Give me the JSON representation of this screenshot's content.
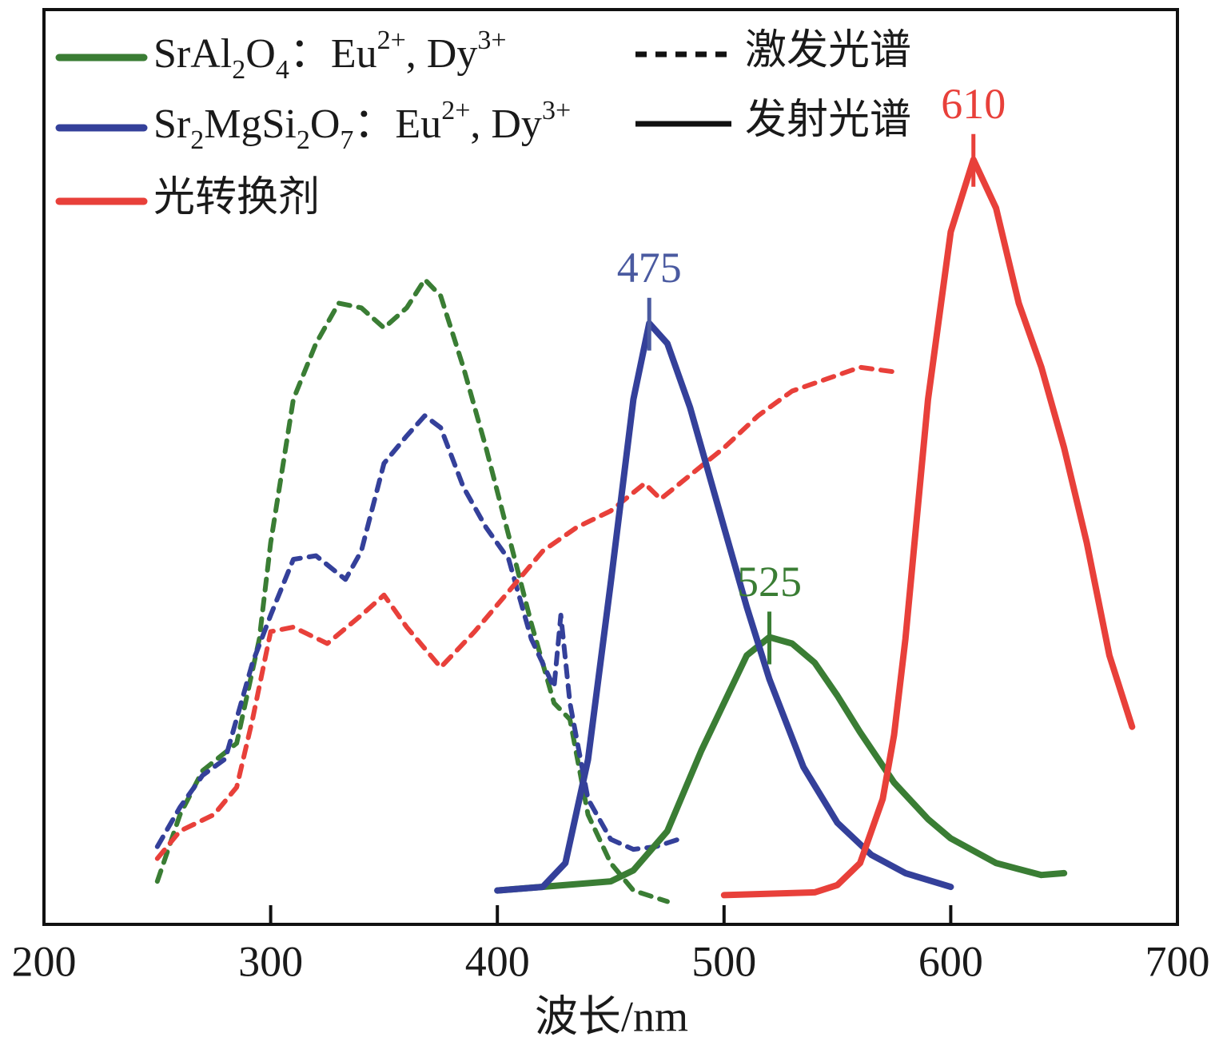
{
  "chart_data": {
    "type": "line",
    "xlabel": "波长/nm",
    "xlim": [
      200,
      700
    ],
    "xticks": [
      200,
      300,
      400,
      500,
      600,
      700
    ],
    "ylim": [
      0,
      100
    ],
    "legend": {
      "materials": [
        {
          "name": "SrAl2O4：Eu2+, Dy3+",
          "color": "#3a7d34"
        },
        {
          "name": "Sr2MgSi2O7：Eu2+, Dy3+",
          "color": "#34409a"
        },
        {
          "name": "光转换剂",
          "color": "#e8403a"
        }
      ],
      "styles": [
        {
          "name": "激发光谱",
          "style": "dashed"
        },
        {
          "name": "发射光谱",
          "style": "solid"
        }
      ]
    },
    "series": [
      {
        "color": "#3a7d34",
        "style": "dashed",
        "x": [
          250,
          260,
          270,
          285,
          295,
          300,
          310,
          320,
          330,
          340,
          350,
          360,
          368,
          375,
          385,
          395,
          405,
          415,
          425,
          432,
          440,
          450,
          460,
          475
        ],
        "values": [
          4.7,
          12,
          16.8,
          19.8,
          31.2,
          41.7,
          57.4,
          63.5,
          67.9,
          67.4,
          65.2,
          67.4,
          70.5,
          68.7,
          60.9,
          52.1,
          42.5,
          32.9,
          24.2,
          22.4,
          12,
          6.7,
          3.7,
          2.5
        ]
      },
      {
        "color": "#34409a",
        "style": "dashed",
        "x": [
          250,
          260,
          270,
          280,
          292,
          300,
          310,
          320,
          333,
          340,
          350,
          360,
          368,
          375,
          385,
          395,
          405,
          415,
          425,
          428,
          432,
          440,
          450,
          460,
          470,
          480
        ],
        "values": [
          8.5,
          12.8,
          16.3,
          18.1,
          28.6,
          33.8,
          39.9,
          40.3,
          37.7,
          40.8,
          50.4,
          53.4,
          55.6,
          54.3,
          47.8,
          43.4,
          39.9,
          31.2,
          25.9,
          33.8,
          24.2,
          13.7,
          9.3,
          8.2,
          8.5,
          9.3
        ]
      },
      {
        "color": "#e8403a",
        "style": "dashed",
        "x": [
          250,
          260,
          275,
          285,
          292,
          300,
          310,
          325,
          340,
          350,
          360,
          375,
          390,
          405,
          420,
          435,
          450,
          465,
          472,
          485,
          500,
          515,
          530,
          545,
          560,
          575
        ],
        "values": [
          7.2,
          10.2,
          12,
          15,
          22.4,
          32,
          32.5,
          30.7,
          33.8,
          36,
          32.5,
          28.1,
          32,
          36.4,
          40.8,
          43.4,
          45.2,
          48.2,
          46.5,
          49.1,
          52.1,
          55.6,
          58.3,
          59.6,
          60.9,
          60.4
        ]
      },
      {
        "color": "#3a7d34",
        "style": "solid",
        "x": [
          400,
          450,
          460,
          475,
          490,
          500,
          510,
          520,
          530,
          540,
          550,
          560,
          575,
          590,
          600,
          620,
          640,
          650
        ],
        "values": [
          3.7,
          4.7,
          5.9,
          10.2,
          19,
          24.2,
          29.4,
          31.4,
          30.7,
          28.6,
          25,
          21,
          15.5,
          11.5,
          9.4,
          6.7,
          5.4,
          5.6
        ]
      },
      {
        "color": "#34409a",
        "style": "solid",
        "x": [
          400,
          420,
          430,
          440,
          450,
          460,
          467,
          475,
          485,
          500,
          510,
          520,
          535,
          550,
          565,
          580,
          600
        ],
        "values": [
          3.7,
          4.1,
          6.7,
          18,
          37.3,
          57.4,
          65.7,
          63.5,
          56.5,
          43.4,
          34.7,
          26.8,
          17.2,
          11.1,
          7.6,
          5.6,
          4.1
        ]
      },
      {
        "color": "#e8403a",
        "style": "solid",
        "x": [
          500,
          540,
          550,
          560,
          570,
          575,
          580,
          590,
          600,
          610,
          620,
          630,
          640,
          650,
          660,
          670,
          680
        ],
        "values": [
          3.2,
          3.5,
          4.3,
          6.7,
          13.7,
          20.7,
          31.2,
          57.4,
          75.7,
          83.6,
          78.3,
          67.9,
          60.9,
          52.1,
          41.7,
          29.4,
          21.6
        ]
      }
    ],
    "annotations": [
      {
        "text": "475",
        "x": 467,
        "y": 65.7,
        "color": "#4a5aa0"
      },
      {
        "text": "525",
        "x": 520,
        "y": 31.4,
        "color": "#3a7d34"
      },
      {
        "text": "610",
        "x": 610,
        "y": 83.6,
        "color": "#e8403a"
      }
    ]
  }
}
